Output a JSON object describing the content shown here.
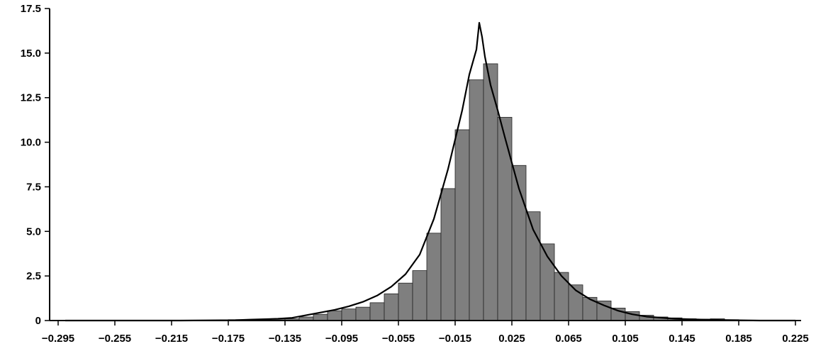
{
  "chart_data": {
    "type": "bar",
    "title": "",
    "xlabel": "",
    "ylabel": "",
    "ylim": [
      0,
      17.5
    ],
    "xlim": [
      -0.301,
      0.229
    ],
    "grid": false,
    "yticks": [
      0,
      2.5,
      5,
      7.5,
      10,
      12.5,
      15,
      17.5
    ],
    "ytick_labels": [
      "0",
      "2.5",
      "5.0",
      "7.5",
      "10.0",
      "12.5",
      "15.0",
      "17.5"
    ],
    "xticks": [
      -0.295,
      -0.255,
      -0.215,
      -0.175,
      -0.135,
      -0.095,
      -0.055,
      -0.015,
      0.025,
      0.065,
      0.105,
      0.145,
      0.185,
      0.225
    ],
    "xtick_labels": [
      "−0.295",
      "−0.255",
      "−0.215",
      "−0.175",
      "−0.135",
      "−0.095",
      "−0.055",
      "−0.015",
      "0.025",
      "0.065",
      "0.105",
      "0.145",
      "0.185",
      "0.225"
    ],
    "bin_width": 0.01,
    "series": [
      {
        "kind": "histogram",
        "bin_start": [
          -0.175,
          -0.165,
          -0.155,
          -0.145,
          -0.135,
          -0.125,
          -0.115,
          -0.105,
          -0.095,
          -0.085,
          -0.075,
          -0.065,
          -0.055,
          -0.045,
          -0.035,
          -0.025,
          -0.015,
          -0.005,
          0.005,
          0.015,
          0.025,
          0.035,
          0.045,
          0.055,
          0.065,
          0.075,
          0.085,
          0.095,
          0.105,
          0.115,
          0.125,
          0.135,
          0.145,
          0.155,
          0.165,
          0.175
        ],
        "values": [
          0.05,
          0.05,
          0.08,
          0.1,
          0.1,
          0.2,
          0.35,
          0.55,
          0.65,
          0.75,
          1.0,
          1.5,
          2.1,
          2.8,
          4.9,
          7.4,
          10.7,
          13.5,
          14.4,
          11.4,
          8.7,
          6.1,
          4.3,
          2.7,
          2.0,
          1.3,
          1.1,
          0.7,
          0.5,
          0.3,
          0.2,
          0.15,
          0.1,
          0.08,
          0.1,
          0.05
        ],
        "color": "#7f7f7f"
      },
      {
        "kind": "density-line",
        "x": [
          -0.29,
          -0.25,
          -0.21,
          -0.17,
          -0.16,
          -0.14,
          -0.13,
          -0.12,
          -0.11,
          -0.1,
          -0.09,
          -0.08,
          -0.07,
          -0.06,
          -0.05,
          -0.04,
          -0.03,
          -0.02,
          -0.01,
          -0.005,
          0.0,
          0.002,
          0.004,
          0.006,
          0.01,
          0.015,
          0.02,
          0.03,
          0.04,
          0.05,
          0.06,
          0.07,
          0.08,
          0.09,
          0.1,
          0.11,
          0.12,
          0.14,
          0.16,
          0.18,
          0.2,
          0.225
        ],
        "y": [
          0.0,
          0.0,
          0.0,
          0.02,
          0.05,
          0.1,
          0.15,
          0.3,
          0.45,
          0.6,
          0.8,
          1.05,
          1.4,
          1.9,
          2.6,
          3.7,
          5.7,
          8.5,
          11.8,
          13.8,
          15.2,
          16.7,
          15.9,
          14.8,
          13.2,
          11.8,
          10.3,
          7.4,
          5.1,
          3.6,
          2.5,
          1.7,
          1.2,
          0.85,
          0.55,
          0.35,
          0.22,
          0.1,
          0.05,
          0.02,
          0.0,
          0.0
        ],
        "color": "#000000"
      }
    ]
  }
}
